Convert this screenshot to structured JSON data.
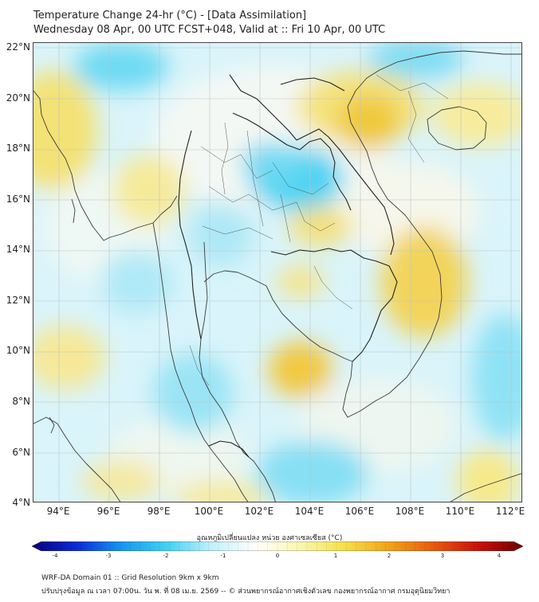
{
  "header": {
    "title": "Temperature Change 24-hr (°C) - [Data Assimilation]",
    "subtitle": "Wednesday 08 Apr, 00 UTC FCST+048, Valid at :: Fri 10 Apr, 00 UTC"
  },
  "map": {
    "lat_labels": [
      "22°N",
      "20°N",
      "18°N",
      "16°N",
      "14°N",
      "12°N",
      "10°N",
      "8°N",
      "6°N",
      "4°N"
    ],
    "lon_labels": [
      "94°E",
      "96°E",
      "98°E",
      "100°E",
      "102°E",
      "104°E",
      "106°E",
      "108°E",
      "110°E",
      "112°E"
    ],
    "lat_range": [
      4,
      22
    ],
    "lon_range": [
      93,
      112.5
    ],
    "grid": true,
    "field_colors": {
      "cool": "#4fd3f2",
      "pale_cool": "#c8f1fb",
      "neutral": "#fafaf2",
      "warm": "#f6e680",
      "hot": "#efc93a"
    }
  },
  "colorbar": {
    "title": "อุณหภูมิเปลี่ยนแปลง หน่วย องศาเซลเซียส (°C)",
    "ticks": [
      "-4",
      "-3",
      "-2",
      "-1",
      "0",
      "1",
      "2",
      "3",
      "4"
    ],
    "range": [
      -4,
      4
    ],
    "colors": [
      "#08007a",
      "#0a2ad6",
      "#1795f0",
      "#3fd0f4",
      "#bff0fb",
      "#ffffff",
      "#fbf7b0",
      "#f6e04a",
      "#f2a21a",
      "#e85a0c",
      "#c8100c",
      "#6e0000"
    ]
  },
  "footer": {
    "line1": "WRF-DA Domain 01 :: Grid Resolution 9km x 9km",
    "line2": "ปรับปรุงข้อมูล ณ เวลา 07:00น. วัน พ. ที่ 08 เม.ย. 2569 -- © ส่วนพยากรณ์อากาศเชิงตัวเลข กองพยากรณ์อากาศ กรมอุตุนิยมวิทยา"
  }
}
